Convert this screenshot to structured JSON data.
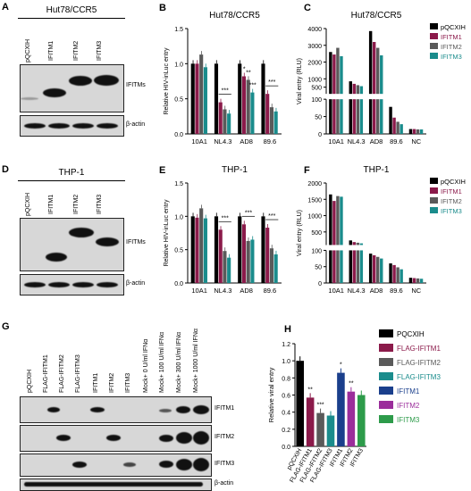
{
  "panels": {
    "A": {
      "label": "A",
      "cell_line": "Hut78/CCR5",
      "lanes": [
        "pQCXIH",
        "IFITM1",
        "IFITM2",
        "IFITM3"
      ],
      "band_top": "IFITMs",
      "band_bottom": "β-actin"
    },
    "D": {
      "label": "D",
      "cell_line": "THP-1",
      "lanes": [
        "pQCXIH",
        "IFITM1",
        "IFITM2",
        "IFITM3"
      ],
      "band_top": "IFITMs",
      "band_bottom": "β-actin"
    },
    "G": {
      "label": "G",
      "lanes": [
        "pQCXIH",
        "FLAG-IFITM1",
        "FLAG-IFITM2",
        "FLAG-IFITM3",
        "IFITM1",
        "IFITM2",
        "IFITM3",
        "Mock+ 0 U/ml IFNα",
        "Mock+ 100 U/ml IFNα",
        "Mock+ 300 U/ml IFNα",
        "Mock+ 1000 U/ml IFNα"
      ],
      "bands": [
        "IFITM1",
        "IFITM2",
        "IFITM3",
        "β-actin"
      ]
    }
  },
  "chart_data": [
    {
      "id": "B",
      "label": "B",
      "type": "bar",
      "title": "Hut78/CCR5",
      "ylabel": "Relative HIV-inLuc entry",
      "categories": [
        "10A1",
        "NL4.3",
        "AD8",
        "89.6"
      ],
      "ylim": [
        0,
        1.5
      ],
      "yticks": [
        "0.0",
        "0.5",
        "1.0",
        "1.5"
      ],
      "series": [
        {
          "name": "pQCXIH",
          "values": [
            1.0,
            1.0,
            1.0,
            1.0
          ]
        },
        {
          "name": "IFITM1",
          "values": [
            1.0,
            0.45,
            0.82,
            0.57
          ]
        },
        {
          "name": "IFITM2",
          "values": [
            1.13,
            0.35,
            0.77,
            0.38
          ]
        },
        {
          "name": "IFITM3",
          "values": [
            0.95,
            0.29,
            0.59,
            0.32
          ]
        }
      ],
      "annotations": [
        {
          "text": "***",
          "cat": 1
        },
        {
          "text": "*",
          "cat": 2,
          "series": 1
        },
        {
          "text": "**",
          "cat": 2,
          "series": 2
        },
        {
          "text": "***",
          "cat": 2,
          "series": 3
        },
        {
          "text": "***",
          "cat": 3
        }
      ]
    },
    {
      "id": "C",
      "label": "C",
      "type": "bar",
      "title": "Hut78/CCR5",
      "ylabel": "Viral entry (RLU)",
      "categories": [
        "10A1",
        "NL4.3",
        "AD8",
        "89.6",
        "NC"
      ],
      "broken_axis": true,
      "ylim_low": [
        0,
        100
      ],
      "ylim_high": [
        100,
        4000
      ],
      "yticks_low": [
        "0",
        "50",
        "100"
      ],
      "yticks_high": [
        "500",
        "1000",
        "2000",
        "3000",
        "4000"
      ],
      "series": [
        {
          "name": "pQCXIH",
          "values": [
            2600,
            850,
            3850,
            78,
            14
          ]
        },
        {
          "name": "IFITM1",
          "values": [
            2450,
            700,
            3200,
            47,
            14
          ]
        },
        {
          "name": "IFITM2",
          "values": [
            2850,
            620,
            2850,
            35,
            13
          ]
        },
        {
          "name": "IFITM3",
          "values": [
            2350,
            560,
            2400,
            28,
            13
          ]
        }
      ],
      "legend": [
        "pQCXIH",
        "IFITM1",
        "IFITM2",
        "IFITM3"
      ]
    },
    {
      "id": "E",
      "label": "E",
      "type": "bar",
      "title": "THP-1",
      "ylabel": "Relative HIV-inLuc entry",
      "categories": [
        "10A1",
        "NL4.3",
        "AD8",
        "89.6"
      ],
      "ylim": [
        0,
        1.5
      ],
      "yticks": [
        "0.0",
        "0.5",
        "1.0",
        "1.5"
      ],
      "series": [
        {
          "name": "pQCXIH",
          "values": [
            1.0,
            1.0,
            1.0,
            1.0
          ]
        },
        {
          "name": "IFITM1",
          "values": [
            0.98,
            0.8,
            0.88,
            0.83
          ]
        },
        {
          "name": "IFITM2",
          "values": [
            1.12,
            0.48,
            0.63,
            0.52
          ]
        },
        {
          "name": "IFITM3",
          "values": [
            0.97,
            0.38,
            0.65,
            0.43
          ]
        }
      ],
      "annotations": [
        {
          "text": "***",
          "cat": 1
        },
        {
          "text": "***",
          "cat": 2
        },
        {
          "text": "***",
          "cat": 3
        }
      ]
    },
    {
      "id": "F",
      "label": "F",
      "type": "bar",
      "title": "THP-1",
      "ylabel": "Viral entry (RLU)",
      "categories": [
        "10A1",
        "NL4.3",
        "AD8",
        "89.6",
        "NC"
      ],
      "broken_axis": true,
      "ylim_low": [
        0,
        100
      ],
      "ylim_high": [
        100,
        2000
      ],
      "yticks_low": [
        "0",
        "50",
        "100"
      ],
      "yticks_high": [
        "500",
        "1000",
        "1500",
        "2000"
      ],
      "series": [
        {
          "name": "pQCXIH",
          "values": [
            1650,
            240,
            90,
            60,
            16
          ]
        },
        {
          "name": "IFITM1",
          "values": [
            1450,
            190,
            85,
            55,
            15
          ]
        },
        {
          "name": "IFITM2",
          "values": [
            1600,
            170,
            80,
            48,
            14
          ]
        },
        {
          "name": "IFITM3",
          "values": [
            1580,
            150,
            75,
            42,
            13
          ]
        }
      ],
      "legend": [
        "pQCXIH",
        "IFITM1",
        "IFITM2",
        "IFITM3"
      ]
    },
    {
      "id": "H",
      "label": "H",
      "type": "bar",
      "ylabel": "Relative viral entry",
      "categories": [
        "pQCXIH",
        "FLAG-IFITM1",
        "FLAG-IFITM2",
        "FLAG-IFITM3",
        "IFITM1",
        "IFITM2",
        "IFITM3"
      ],
      "ylim": [
        0,
        1.2
      ],
      "yticks": [
        "0.0",
        "0.2",
        "0.4",
        "0.6",
        "0.8",
        "1.0",
        "1.2"
      ],
      "values": [
        1.0,
        0.57,
        0.39,
        0.36,
        0.86,
        0.64,
        0.6
      ],
      "annotations": [
        {
          "text": "**",
          "cat": 1
        },
        {
          "text": "***",
          "cat": 2
        },
        {
          "text": "*",
          "cat": 4
        },
        {
          "text": "**",
          "cat": 5
        }
      ],
      "legend": [
        "PQCXIH",
        "FLAG-IFITM1",
        "FLAG-IFITM2",
        "FLAG-IFITM3",
        "IFITM1",
        "IFITM2",
        "IFITM3"
      ]
    }
  ],
  "colors": {
    "series4": [
      "#000000",
      "#8b1a4a",
      "#5a5a5a",
      "#1a8c8c"
    ],
    "h": [
      "#000000",
      "#8b1a4a",
      "#5a5a5a",
      "#1a8c8c",
      "#1a3f8c",
      "#9b2d9b",
      "#2d9b4a"
    ]
  }
}
